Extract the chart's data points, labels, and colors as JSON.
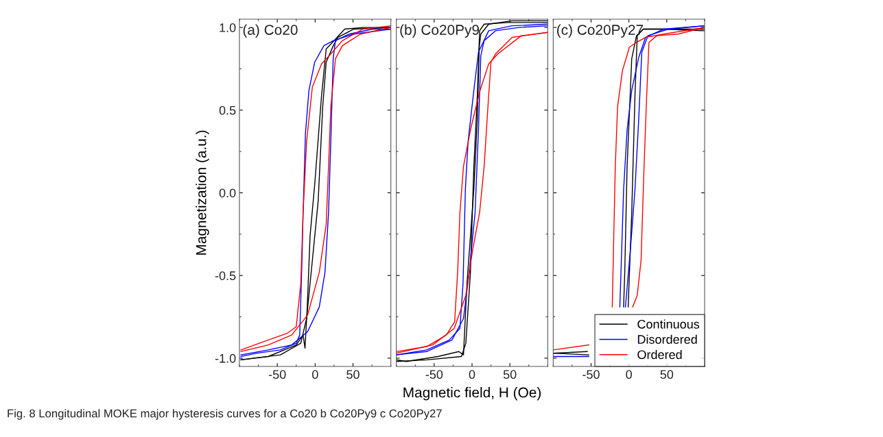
{
  "chart_data": [
    {
      "type": "line",
      "xlim": [
        -100,
        100
      ],
      "xticks": [
        -50,
        0,
        50
      ],
      "ylim": [
        -1.05,
        1.05
      ],
      "yticks": [
        {
          "value": -1.0,
          "label": "-1.0"
        },
        {
          "value": -0.5,
          "label": "-0.5"
        },
        {
          "value": 0.0,
          "label": "0.0"
        },
        {
          "value": 0.5,
          "label": "0.5"
        },
        {
          "value": 1.0,
          "label": "1.0"
        }
      ],
      "ylabel": "Magnetization (a.u.)",
      "annotations": [
        "(a) Co20"
      ],
      "grid": false,
      "legend": false,
      "marker": "none",
      "line_style": "solid",
      "series": [
        {
          "color": "#000000",
          "x": [
            100,
            63,
            39,
            27,
            14.6,
            8.5,
            -0.6,
            -6.7,
            -10.4,
            -13.4,
            -15.9,
            -25,
            -62,
            -98
          ],
          "values": [
            1.0,
            1.0,
            0.99,
            0.93,
            0.87,
            0.59,
            0.05,
            -0.26,
            -0.69,
            -0.94,
            -0.86,
            -0.92,
            -0.99,
            -1.01
          ]
        },
        {
          "color": "#000000",
          "x": [
            -98,
            -46,
            -19,
            -11.3,
            -3.7,
            4,
            10,
            14.6,
            24,
            30,
            51,
            100
          ],
          "values": [
            -1.01,
            -0.98,
            -0.91,
            -0.76,
            -0.41,
            -0.05,
            0.52,
            0.79,
            0.89,
            0.94,
            0.99,
            1.0
          ]
        },
        {
          "color": "#0000ff",
          "x": [
            100,
            51,
            24,
            11.6,
            -0.6,
            -8.2,
            -12.8,
            -15.9,
            -17.4,
            -20.4,
            -25,
            -46,
            -77,
            -98
          ],
          "values": [
            0.99,
            0.96,
            0.92,
            0.89,
            0.79,
            0.62,
            0.36,
            -0.12,
            -0.41,
            -0.86,
            -0.91,
            -0.95,
            -0.97,
            -0.99
          ]
        },
        {
          "color": "#0000ff",
          "x": [
            -98,
            -62,
            -31,
            -10,
            5.5,
            13,
            17.7,
            20.7,
            23.8,
            26.8,
            45,
            75.6,
            100
          ],
          "values": [
            -0.98,
            -0.95,
            -0.92,
            -0.84,
            -0.69,
            -0.48,
            -0.12,
            0.31,
            0.81,
            0.92,
            0.96,
            0.99,
            0.99
          ]
        },
        {
          "color": "#ff0000",
          "x": [
            100,
            63,
            36,
            20.7,
            8.5,
            -3.7,
            -11.3,
            -15.9,
            -19,
            -25,
            -37,
            -62,
            -98
          ],
          "values": [
            1.01,
            0.99,
            0.92,
            0.84,
            0.78,
            0.64,
            0.31,
            -0.12,
            -0.55,
            -0.81,
            -0.85,
            -0.89,
            -0.95
          ]
        },
        {
          "color": "#ff0000",
          "x": [
            -98,
            -62,
            -31,
            -10,
            5.5,
            14.6,
            17.7,
            20.7,
            26.8,
            36,
            60,
            100
          ],
          "values": [
            -0.96,
            -0.92,
            -0.86,
            -0.74,
            -0.48,
            -0.19,
            0.16,
            0.52,
            0.81,
            0.89,
            0.96,
            1.0
          ]
        }
      ]
    },
    {
      "type": "line",
      "xlim": [
        -100,
        100
      ],
      "xticks": [
        -50,
        0,
        50
      ],
      "ylim": [
        -1.05,
        1.05
      ],
      "yticks": [
        -1.0,
        -0.5,
        0.0,
        0.5,
        1.0
      ],
      "tick_labels": "x",
      "xlabel": "Magnetic field, H (Oe)",
      "annotations": [
        "(b) Co20Py9"
      ],
      "grid": false,
      "legend": false,
      "marker": "none",
      "line_style": "solid",
      "series": [
        {
          "color": "#000000",
          "x": [
            100,
            53,
            22,
            11.6,
            9.5,
            7,
            2.4,
            -6.7,
            -11.3,
            -17.4,
            -45,
            -87,
            -100
          ],
          "values": [
            1.04,
            1.04,
            1.02,
            0.96,
            0.88,
            0.45,
            0.02,
            -0.55,
            -0.98,
            -0.96,
            -0.99,
            -1.02,
            -1.01
          ]
        },
        {
          "color": "#000000",
          "x": [
            -100,
            -60,
            -14,
            -8.2,
            -2.1,
            2.4,
            7,
            10,
            16,
            47,
            100
          ],
          "values": [
            -1.02,
            -1.01,
            -0.99,
            -0.91,
            -0.48,
            0.16,
            0.59,
            0.98,
            1.02,
            1.03,
            1.03
          ]
        },
        {
          "color": "#0000ff",
          "x": [
            100,
            53,
            22,
            8.5,
            2.4,
            -5.2,
            -8.8,
            -11.9,
            -16,
            -30,
            -60,
            -100
          ],
          "values": [
            1.02,
            1.01,
            0.98,
            0.85,
            0.62,
            0.31,
            0.02,
            -0.55,
            -0.82,
            -0.89,
            -0.95,
            -0.98
          ]
        },
        {
          "color": "#0000ff",
          "x": [
            -100,
            -60,
            -26.5,
            -11.3,
            -3.7,
            4,
            8.5,
            11.6,
            16,
            31,
            62,
            100
          ],
          "values": [
            -0.98,
            -0.96,
            -0.89,
            -0.76,
            -0.48,
            -0.12,
            0.38,
            0.83,
            0.92,
            0.98,
            1.0,
            1.01
          ]
        },
        {
          "color": "#ff0000",
          "x": [
            100,
            65,
            34,
            22,
            10,
            -2.1,
            -11.3,
            -16,
            -19,
            -23,
            -34,
            -60,
            -100
          ],
          "values": [
            0.97,
            0.95,
            0.84,
            0.78,
            0.61,
            0.38,
            0.16,
            -0.12,
            -0.48,
            -0.78,
            -0.86,
            -0.93,
            -0.96
          ]
        },
        {
          "color": "#ff0000",
          "x": [
            -100,
            -52,
            -23.5,
            -8.2,
            1,
            10,
            16,
            21,
            25,
            31,
            53,
            100
          ],
          "values": [
            -0.97,
            -0.92,
            -0.82,
            -0.62,
            -0.34,
            -0.12,
            0.16,
            0.52,
            0.79,
            0.84,
            0.94,
            0.97
          ]
        }
      ]
    },
    {
      "type": "line",
      "xlim": [
        -100,
        100
      ],
      "xticks": [
        -50,
        0,
        50
      ],
      "ylim": [
        -1.05,
        1.05
      ],
      "yticks": [
        -1.0,
        -0.5,
        0.0,
        0.5,
        1.0
      ],
      "tick_labels": "x",
      "annotations": [
        "(c) Co20Py27",
        "Fig. 8 Longitudinal MOKE major hysteresis curves for a Co20 b Co20Py9 c Co20Py27"
      ],
      "grid": false,
      "legend": "bottom right",
      "marker": "none",
      "line_style": "solid",
      "series": [
        {
          "name": "Continuous",
          "color": "#000000",
          "x": [
            100,
            46,
            19,
            10,
            3.7,
            -2.4,
            -5.5,
            -7,
            -30,
            -53,
            -100
          ],
          "values": [
            0.98,
            0.99,
            0.99,
            0.95,
            0.81,
            0.16,
            -0.48,
            -0.69,
            null,
            -0.98,
            -0.97
          ]
        },
        {
          "color": "#000000",
          "x": [
            -100,
            -55,
            -30,
            -1,
            3.7,
            8,
            11,
            19,
            100
          ],
          "values": [
            -0.97,
            -0.96,
            null,
            -0.69,
            -0.12,
            0.59,
            0.95,
            0.99,
            0.99
          ]
        },
        {
          "name": "Disordered",
          "color": "#0000ff",
          "x": [
            100,
            46,
            22,
            13,
            3.7,
            -2.4,
            -7,
            -10,
            -12,
            -30,
            -53,
            -100
          ],
          "values": [
            1.01,
            0.99,
            0.94,
            0.82,
            0.62,
            0.38,
            0.02,
            -0.41,
            -0.69,
            null,
            -0.99,
            -0.99
          ]
        },
        {
          "color": "#0000ff",
          "x": [
            -4.6,
            2,
            8,
            13,
            17,
            25,
            52,
            100
          ],
          "values": [
            -0.69,
            -0.34,
            0.02,
            0.45,
            0.85,
            0.95,
            0.99,
            1.01
          ]
        },
        {
          "name": "Ordered",
          "color": "#ff0000",
          "x": [
            100,
            46,
            22,
            10,
            0.6,
            -8.5,
            -15,
            -18,
            -20,
            -22,
            -40,
            -53,
            -100
          ],
          "values": [
            1.0,
            0.96,
            0.94,
            0.91,
            0.88,
            0.74,
            0.52,
            0.16,
            -0.26,
            -0.69,
            null,
            -0.92,
            -0.95
          ]
        },
        {
          "color": "#ff0000",
          "x": [
            5,
            11,
            16,
            20,
            23.5,
            26.5,
            37,
            65,
            100
          ],
          "values": [
            -0.69,
            -0.62,
            -0.41,
            0.16,
            0.59,
            0.91,
            0.95,
            0.96,
            1.0
          ]
        }
      ]
    }
  ]
}
